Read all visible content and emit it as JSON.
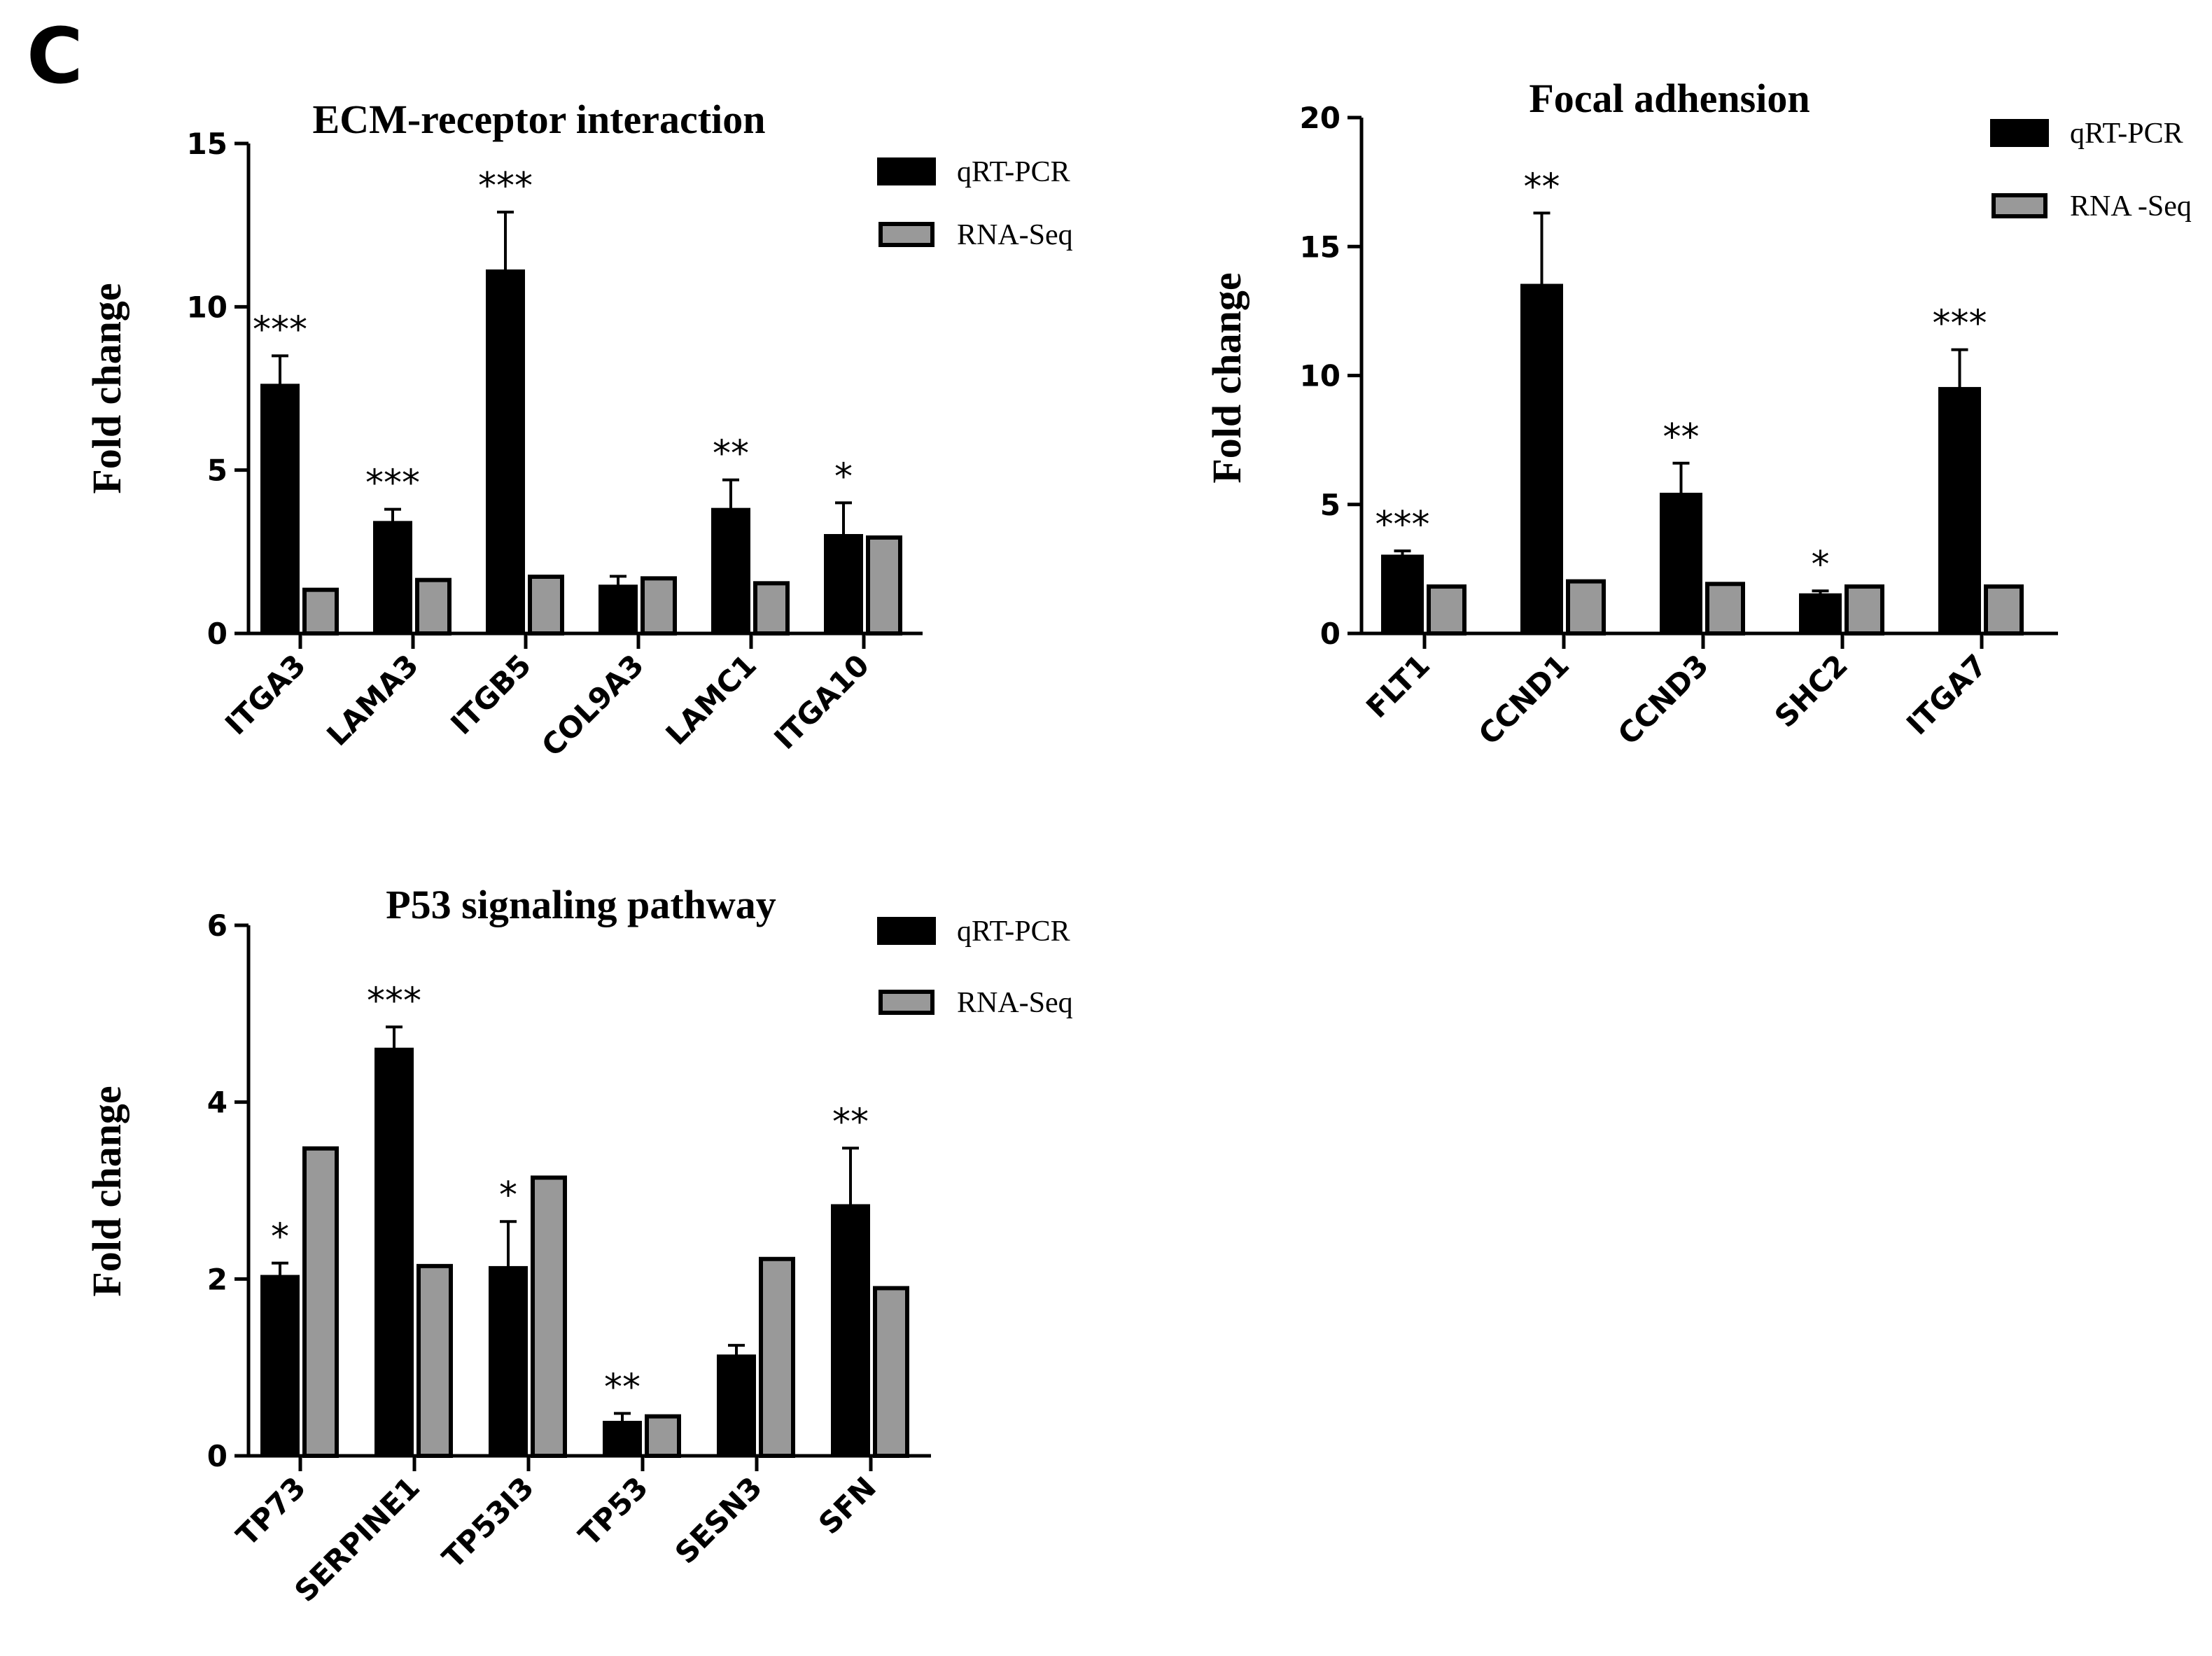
{
  "panel_letter": "C",
  "colors": {
    "qrt": "#000000",
    "rna": "#999999",
    "outline": "#000000"
  },
  "chart_data": [
    {
      "type": "bar",
      "title": "ECM-receptor interaction",
      "ylabel": "Fold change",
      "xlabel": "",
      "ylim": [
        0,
        15
      ],
      "yticks": [
        0,
        5,
        10,
        15
      ],
      "categories": [
        "ITGA3",
        "LAMA3",
        "ITGB5",
        "COL9A3",
        "LAMC1",
        "ITGA10"
      ],
      "series": [
        {
          "name": "qRT-PCR",
          "values": [
            7.6,
            3.4,
            11.1,
            1.45,
            3.8,
            3.0
          ],
          "errors": [
            0.9,
            0.4,
            1.8,
            0.3,
            0.9,
            1.0
          ]
        },
        {
          "name": "RNA-Seq",
          "values": [
            1.4,
            1.7,
            1.8,
            1.75,
            1.6,
            3.0
          ]
        }
      ],
      "significance": [
        "***",
        "***",
        "***",
        "",
        "**",
        "*"
      ]
    },
    {
      "type": "bar",
      "title": "Focal adhension",
      "ylabel": "Fold change",
      "xlabel": "",
      "ylim": [
        0,
        20
      ],
      "yticks": [
        0,
        5,
        10,
        15,
        20
      ],
      "categories": [
        "FLT1",
        "CCND1",
        "CCND3",
        "SHC2",
        "ITGA7"
      ],
      "series": [
        {
          "name": "qRT-PCR",
          "values": [
            3.0,
            13.5,
            5.4,
            1.5,
            9.5
          ],
          "errors": [
            0.2,
            2.8,
            1.2,
            0.15,
            1.5
          ]
        },
        {
          "name": "RNA -Seq",
          "values": [
            1.9,
            2.1,
            2.0,
            1.9,
            1.9
          ]
        }
      ],
      "significance": [
        "***",
        "**",
        "**",
        "*",
        "***"
      ]
    },
    {
      "type": "bar",
      "title": "P53 signaling pathway",
      "ylabel": "Fold change",
      "xlabel": "",
      "ylim": [
        0,
        6
      ],
      "yticks": [
        0,
        2,
        4,
        6
      ],
      "categories": [
        "TP73",
        "SERPINE1",
        "TP53I3",
        "TP53",
        "SESN3",
        "SFN"
      ],
      "series": [
        {
          "name": "qRT-PCR",
          "values": [
            2.03,
            4.6,
            2.13,
            0.38,
            1.13,
            2.83
          ],
          "errors": [
            0.15,
            0.25,
            0.52,
            0.1,
            0.12,
            0.65
          ]
        },
        {
          "name": "RNA-Seq",
          "values": [
            3.5,
            2.17,
            3.17,
            0.47,
            2.25,
            1.92
          ]
        }
      ],
      "significance": [
        "*",
        "***",
        "*",
        "**",
        "",
        "**"
      ]
    }
  ]
}
